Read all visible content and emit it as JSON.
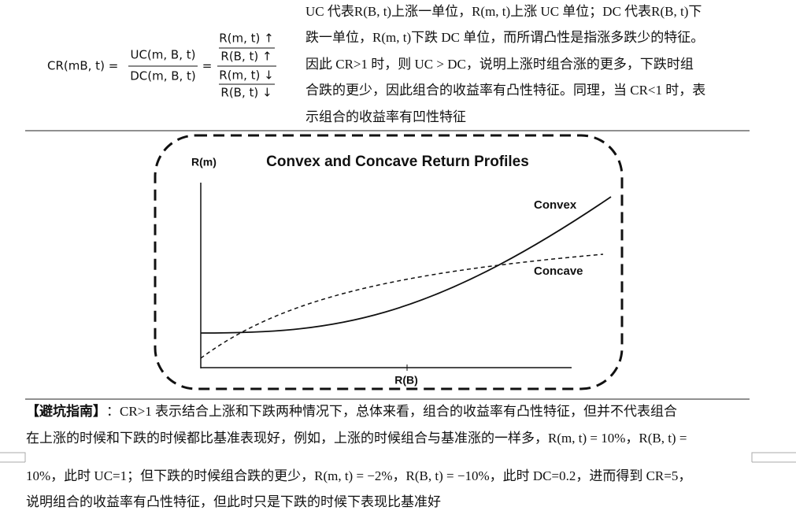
{
  "formula": {
    "lhs": "CR(mB, t) =",
    "num": "UC(m, B, t)",
    "den": "DC(m, B, t)",
    "equals": "=",
    "up_num": "R(m, t) ↑",
    "up_den": "R(B, t) ↑",
    "down_num": "R(m, t) ↓",
    "down_den": "R(B, t) ↓"
  },
  "explanation": {
    "lines": [
      "UC 代表R(B, t)上涨一单位，R(m, t)上涨 UC 单位；DC 代表R(B, t)下",
      "跌一单位，R(m, t)下跌 DC 单位，而所谓凸性是指涨多跌少的特征。",
      "因此 CR>1 时，则 UC > DC，说明上涨时组合涨的更多，下跌时组",
      "合跌的更少，因此组合的收益率有凸性特征。同理，当 CR<1 时，表",
      "示组合的收益率有凹性特征"
    ]
  },
  "figure": {
    "title": "Convex and Concave Return Profiles",
    "y_label": "R(m)",
    "x_label": "R(B)",
    "convex_label": "Convex",
    "concave_label": "Concave"
  },
  "note": {
    "heading": "【避坑指南】",
    "lines": [
      "：CR>1 表示结合上涨和下跌两种情况下，总体来看，组合的收益率有凸性特征，但并不代表组合",
      "在上涨的时候和下跌的时候都比基准表现好，例如，上涨的时候组合与基准涨的一样多，R(m, t) = 10%，R(B, t) =",
      "10%，此时 UC=1；但下跌的时候组合跌的更少，R(m, t) = −2%，R(B, t) = −10%，此时 DC=0.2，进而得到 CR=5，",
      "说明组合的收益率有凸性特征，但此时只是下跌的时候下表现比基准好"
    ]
  }
}
